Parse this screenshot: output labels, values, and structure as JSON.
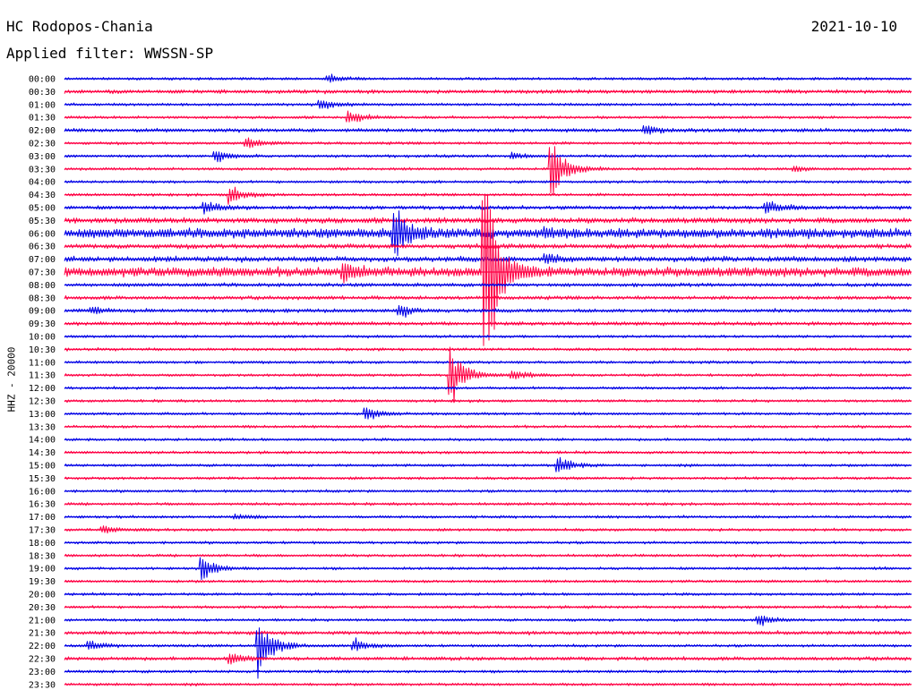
{
  "header": {
    "station": "HC Rodopos-Chania",
    "date": "2021-10-10",
    "filter": "Applied filter: WWSSN-SP"
  },
  "chart_data": {
    "type": "line",
    "title": "HC Rodopos-Chania",
    "subtitle": "Applied filter: WWSSN-SP",
    "date": "2021-10-10",
    "ylabel": "HHZ - 20000",
    "xlabel": "",
    "grid": false,
    "colors": {
      "even_rows": "#0000e6",
      "odd_rows": "#ff0044"
    },
    "row_minutes": 30,
    "rows": [
      "00:00",
      "00:30",
      "01:00",
      "01:30",
      "02:00",
      "02:30",
      "03:00",
      "03:30",
      "04:00",
      "04:30",
      "05:00",
      "05:30",
      "06:00",
      "06:30",
      "07:00",
      "07:30",
      "08:00",
      "08:30",
      "09:00",
      "09:30",
      "10:00",
      "10:30",
      "11:00",
      "11:30",
      "12:00",
      "12:30",
      "13:00",
      "13:30",
      "14:00",
      "14:30",
      "15:00",
      "15:30",
      "16:00",
      "16:30",
      "17:00",
      "17:30",
      "18:00",
      "18:30",
      "19:00",
      "19:30",
      "20:00",
      "20:30",
      "21:00",
      "21:30",
      "22:00",
      "22:30",
      "23:00",
      "23:30"
    ],
    "noise": [
      1.5,
      2,
      1.5,
      1.5,
      2,
      1.5,
      1.5,
      1.5,
      1.5,
      1.5,
      2,
      3,
      5,
      2.5,
      3,
      5,
      2,
      2,
      2,
      2,
      1.5,
      1.5,
      1.5,
      1.5,
      1.5,
      1.5,
      1.5,
      1.5,
      1.5,
      1.5,
      1.5,
      1.5,
      1.5,
      1.5,
      1.5,
      1.5,
      1.5,
      1.5,
      1.5,
      1.5,
      1.5,
      1.5,
      1.5,
      2,
      1.5,
      2,
      1.5,
      1.5
    ],
    "events": [
      {
        "row": "00:00",
        "minute": 9.3,
        "amplitude": 6
      },
      {
        "row": "01:00",
        "minute": 9.0,
        "amplitude": 10
      },
      {
        "row": "01:30",
        "minute": 10.0,
        "amplitude": 12
      },
      {
        "row": "02:00",
        "minute": 20.5,
        "amplitude": 9
      },
      {
        "row": "02:30",
        "minute": 6.4,
        "amplitude": 10
      },
      {
        "row": "03:00",
        "minute": 5.3,
        "amplitude": 12
      },
      {
        "row": "03:00",
        "minute": 15.8,
        "amplitude": 6
      },
      {
        "row": "03:30",
        "minute": 17.2,
        "amplitude": 60
      },
      {
        "row": "03:30",
        "minute": 25.8,
        "amplitude": 5
      },
      {
        "row": "04:30",
        "minute": 5.8,
        "amplitude": 16
      },
      {
        "row": "05:00",
        "minute": 4.9,
        "amplitude": 11
      },
      {
        "row": "05:00",
        "minute": 24.8,
        "amplitude": 14
      },
      {
        "row": "06:00",
        "minute": 11.6,
        "amplitude": 52
      },
      {
        "row": "06:00",
        "minute": 17.0,
        "amplitude": 8
      },
      {
        "row": "07:00",
        "minute": 17.0,
        "amplitude": 8
      },
      {
        "row": "07:30",
        "minute": 9.8,
        "amplitude": 18
      },
      {
        "row": "07:30",
        "minute": 14.8,
        "amplitude": 200
      },
      {
        "row": "09:00",
        "minute": 0.9,
        "amplitude": 7
      },
      {
        "row": "09:00",
        "minute": 11.8,
        "amplitude": 11
      },
      {
        "row": "11:30",
        "minute": 13.6,
        "amplitude": 55
      },
      {
        "row": "11:30",
        "minute": 15.8,
        "amplitude": 10
      },
      {
        "row": "13:00",
        "minute": 10.6,
        "amplitude": 14
      },
      {
        "row": "15:00",
        "minute": 17.4,
        "amplitude": 17
      },
      {
        "row": "17:00",
        "minute": 6.0,
        "amplitude": 6
      },
      {
        "row": "17:30",
        "minute": 1.3,
        "amplitude": 7
      },
      {
        "row": "19:00",
        "minute": 4.8,
        "amplitude": 20
      },
      {
        "row": "21:00",
        "minute": 24.5,
        "amplitude": 12
      },
      {
        "row": "22:00",
        "minute": 0.8,
        "amplitude": 9
      },
      {
        "row": "22:00",
        "minute": 6.8,
        "amplitude": 55
      },
      {
        "row": "22:00",
        "minute": 10.2,
        "amplitude": 14
      },
      {
        "row": "22:30",
        "minute": 5.8,
        "amplitude": 12
      }
    ]
  }
}
